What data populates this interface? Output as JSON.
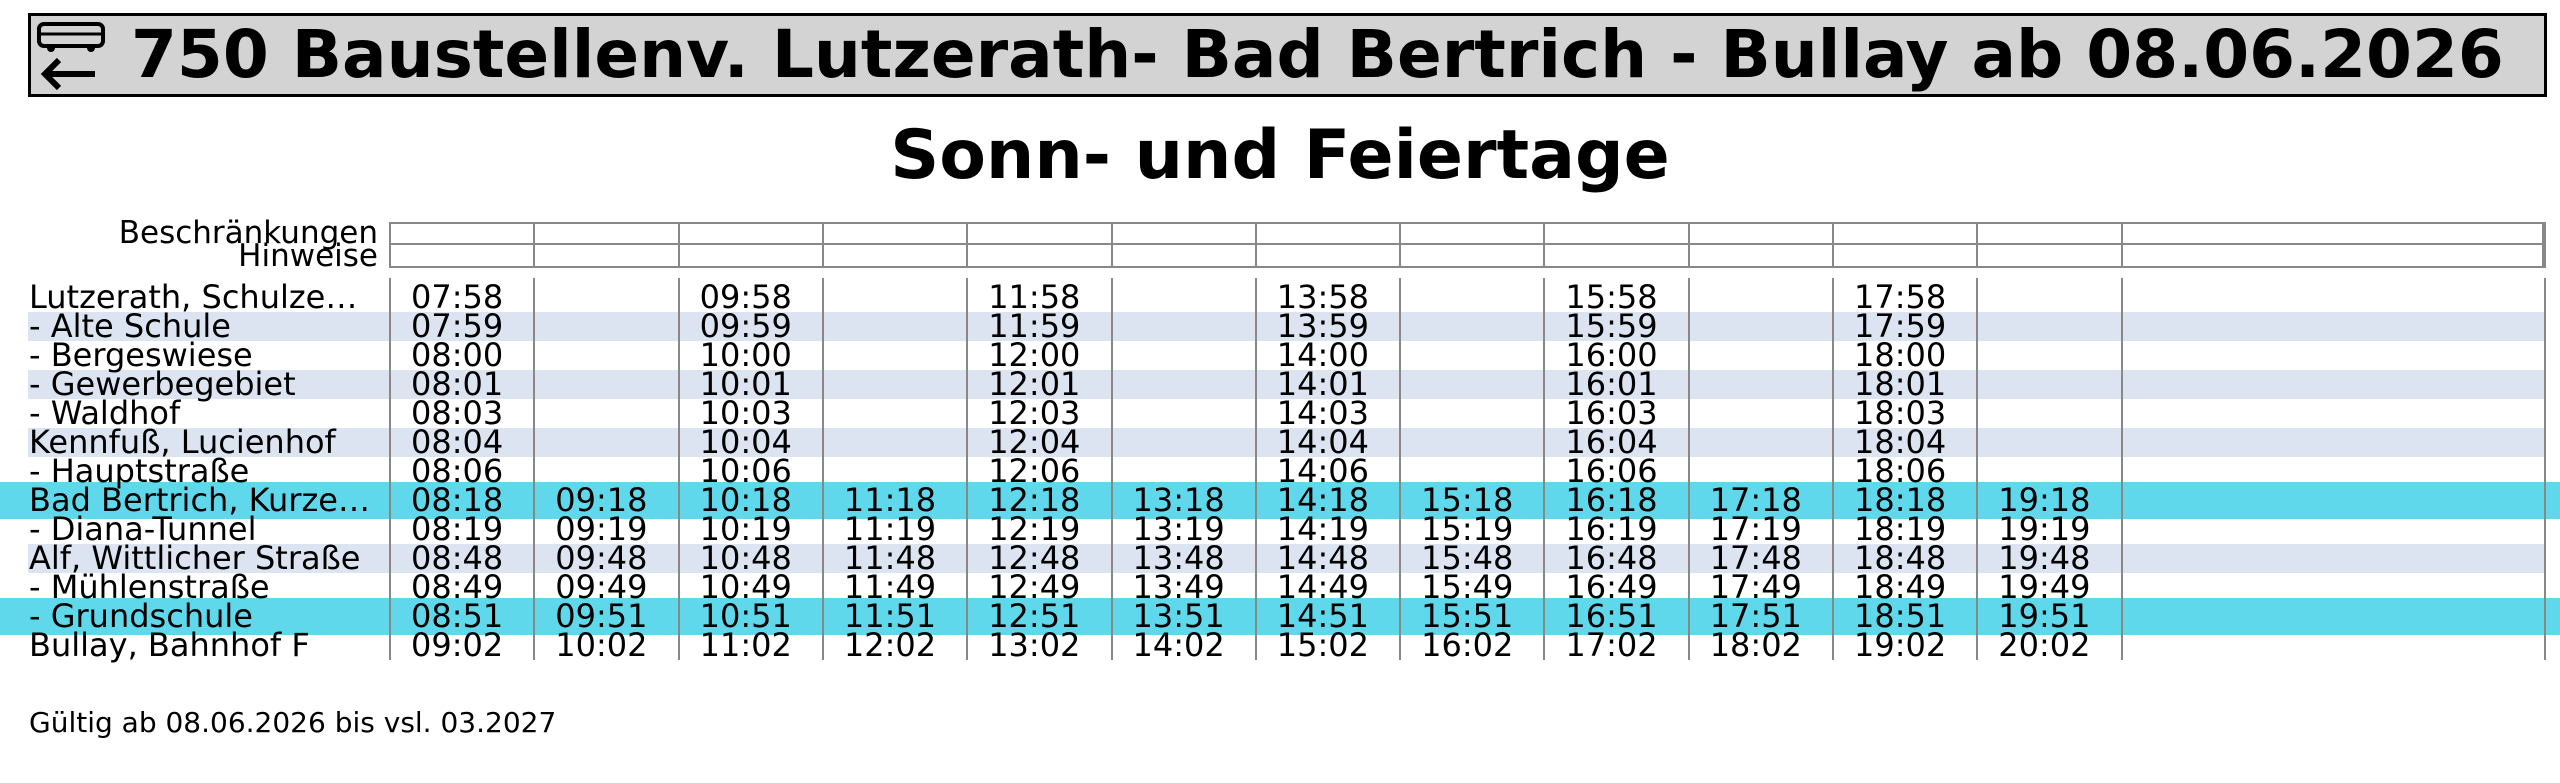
{
  "header": {
    "title": "750 Baustellenv. Lutzerath- Bad Bertrich - Bullay ab 08.06.2026"
  },
  "subtitle": "Sonn- und Feiertage",
  "labels": [
    "Beschränkungen",
    "Hinweise"
  ],
  "table": {
    "rows": [
      {
        "stop": "Lutzerath, Schulze…",
        "times": [
          "07:58",
          null,
          "09:58",
          null,
          "11:58",
          null,
          "13:58",
          null,
          "15:58",
          null,
          "17:58",
          null
        ]
      },
      {
        "stop": "- Alte Schule",
        "times": [
          "07:59",
          null,
          "09:59",
          null,
          "11:59",
          null,
          "13:59",
          null,
          "15:59",
          null,
          "17:59",
          null
        ]
      },
      {
        "stop": "- Bergeswiese",
        "times": [
          "08:00",
          null,
          "10:00",
          null,
          "12:00",
          null,
          "14:00",
          null,
          "16:00",
          null,
          "18:00",
          null
        ]
      },
      {
        "stop": "- Gewerbegebiet",
        "times": [
          "08:01",
          null,
          "10:01",
          null,
          "12:01",
          null,
          "14:01",
          null,
          "16:01",
          null,
          "18:01",
          null
        ]
      },
      {
        "stop": "- Waldhof",
        "times": [
          "08:03",
          null,
          "10:03",
          null,
          "12:03",
          null,
          "14:03",
          null,
          "16:03",
          null,
          "18:03",
          null
        ]
      },
      {
        "stop": "Kennfuß, Lucienhof",
        "times": [
          "08:04",
          null,
          "10:04",
          null,
          "12:04",
          null,
          "14:04",
          null,
          "16:04",
          null,
          "18:04",
          null
        ]
      },
      {
        "stop": "- Hauptstraße",
        "times": [
          "08:06",
          null,
          "10:06",
          null,
          "12:06",
          null,
          "14:06",
          null,
          "16:06",
          null,
          "18:06",
          null
        ]
      },
      {
        "stop": "Bad Bertrich, Kurze…",
        "times": [
          "08:18",
          "09:18",
          "10:18",
          "11:18",
          "12:18",
          "13:18",
          "14:18",
          "15:18",
          "16:18",
          "17:18",
          "18:18",
          "19:18"
        ]
      },
      {
        "stop": "- Diana-Tunnel",
        "times": [
          "08:19",
          "09:19",
          "10:19",
          "11:19",
          "12:19",
          "13:19",
          "14:19",
          "15:19",
          "16:19",
          "17:19",
          "18:19",
          "19:19"
        ]
      },
      {
        "stop": "Alf, Wittlicher Straße",
        "times": [
          "08:48",
          "09:48",
          "10:48",
          "11:48",
          "12:48",
          "13:48",
          "14:48",
          "15:48",
          "16:48",
          "17:48",
          "18:48",
          "19:48"
        ]
      },
      {
        "stop": "- Mühlenstraße",
        "times": [
          "08:49",
          "09:49",
          "10:49",
          "11:49",
          "12:49",
          "13:49",
          "14:49",
          "15:49",
          "16:49",
          "17:49",
          "18:49",
          "19:49"
        ]
      },
      {
        "stop": "- Grundschule",
        "times": [
          "08:51",
          "09:51",
          "10:51",
          "11:51",
          "12:51",
          "13:51",
          "14:51",
          "15:51",
          "16:51",
          "17:51",
          "18:51",
          "19:51"
        ]
      },
      {
        "stop": "Bullay, Bahnhof F",
        "times": [
          "09:02",
          "10:02",
          "11:02",
          "12:02",
          "13:02",
          "14:02",
          "15:02",
          "16:02",
          "17:02",
          "18:02",
          "19:02",
          "20:02"
        ]
      }
    ]
  },
  "footer": "Gültig ab 08.06.2026 bis vsl. 03.2027"
}
